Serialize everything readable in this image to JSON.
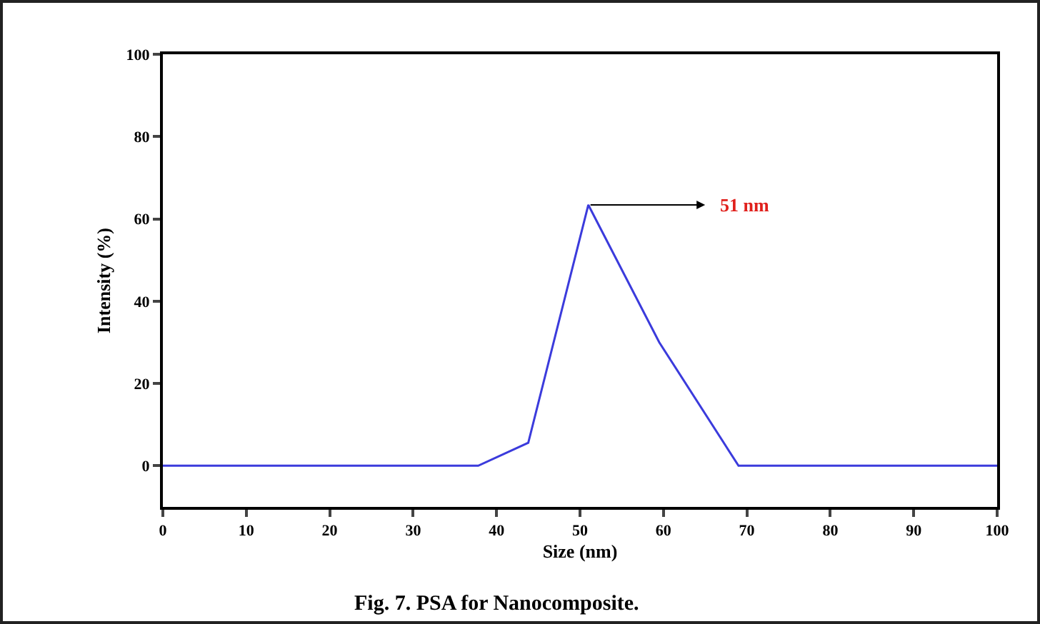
{
  "chart_data": {
    "type": "line",
    "xlabel": "Size (nm)",
    "ylabel": "Intensity (%)",
    "x": [
      0,
      37.8,
      43.8,
      51,
      59.5,
      69,
      100
    ],
    "series": [
      {
        "color": "#3b3bdc",
        "values": [
          0,
          0,
          5.6,
          63.4,
          30,
          0,
          0
        ]
      }
    ],
    "xlim": [
      0,
      100
    ],
    "xticks": [
      0,
      10,
      20,
      30,
      40,
      50,
      60,
      70,
      80,
      90,
      100
    ],
    "ylim": [
      -10,
      100
    ],
    "yticks": [
      0,
      20,
      40,
      60,
      80,
      100
    ],
    "grid": false,
    "marker": "none",
    "line_style": "solid",
    "annotations": [
      {
        "text": "51 nm",
        "x": 51,
        "y": 63.4
      },
      "Fig. 7. PSA for Nanocomposite."
    ]
  }
}
